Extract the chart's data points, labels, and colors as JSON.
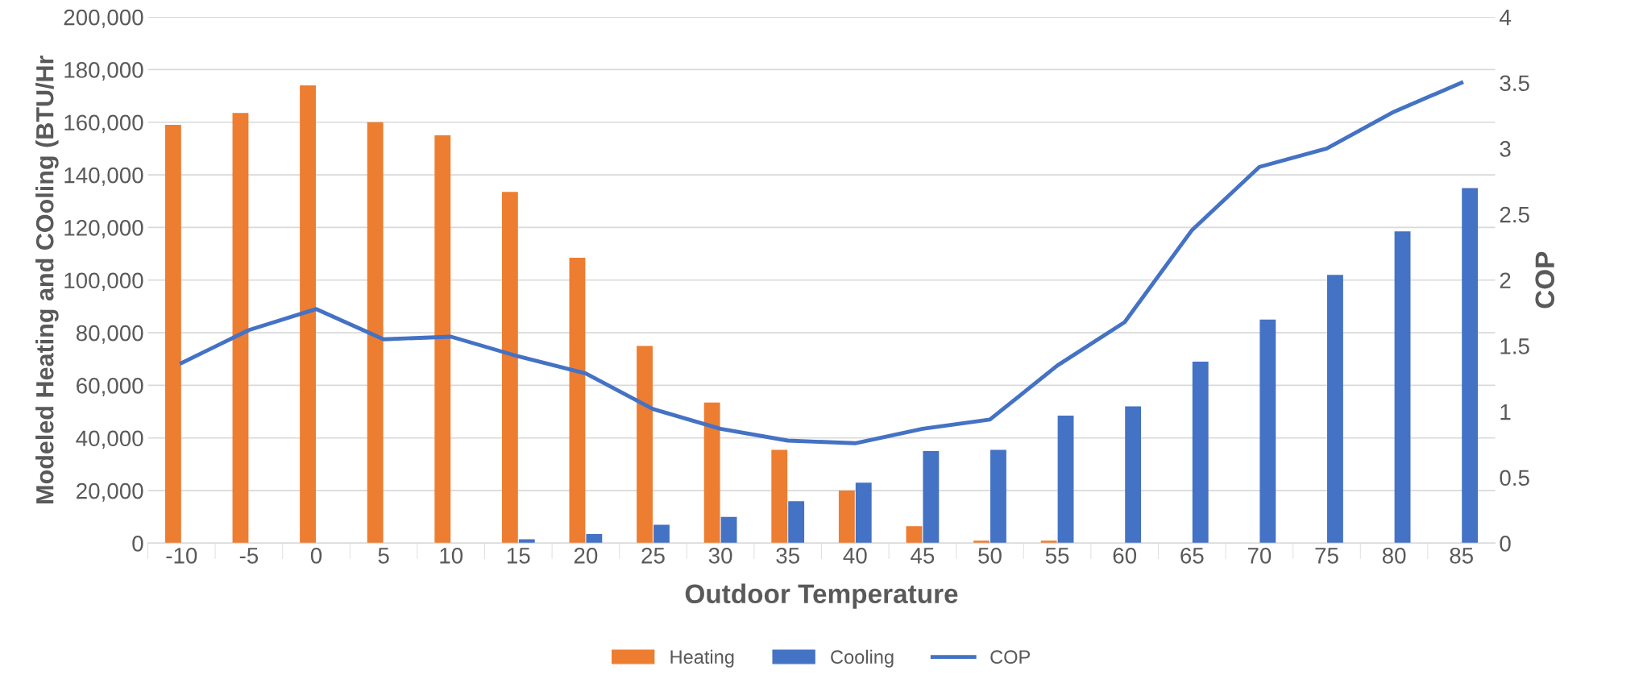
{
  "chart_data": {
    "type": "bar",
    "xlabel": "Outdoor Temperature",
    "ylabel": "Modeled Heating and COoling (BTU/Hr",
    "y2label": "COP",
    "categories": [
      "-10",
      "-5",
      "0",
      "5",
      "10",
      "15",
      "20",
      "25",
      "30",
      "35",
      "40",
      "45",
      "50",
      "55",
      "60",
      "65",
      "70",
      "75",
      "80",
      "85"
    ],
    "series": [
      {
        "name": "Heating",
        "color": "#ed7d31",
        "values": [
          159000,
          163500,
          174000,
          160000,
          155000,
          133500,
          108500,
          75000,
          53500,
          35500,
          20000,
          6500,
          1000,
          1000,
          null,
          null,
          null,
          null,
          null,
          null
        ]
      },
      {
        "name": "Cooling",
        "color": "#4472c4",
        "values": [
          null,
          null,
          null,
          null,
          null,
          1500,
          3500,
          7000,
          10000,
          16000,
          23000,
          35000,
          35500,
          48500,
          52000,
          69000,
          85000,
          102000,
          118500,
          135000
        ]
      },
      {
        "name": "COP",
        "type": "line",
        "axis": "y2",
        "color": "#4472c4",
        "values": [
          1.37,
          1.62,
          1.78,
          1.55,
          1.57,
          1.42,
          1.29,
          1.02,
          0.87,
          0.78,
          0.76,
          0.87,
          0.94,
          1.35,
          1.68,
          2.38,
          2.86,
          3.0,
          3.28,
          3.5
        ]
      }
    ],
    "ylim": [
      0,
      200000
    ],
    "yticks": [
      0,
      {
        "value": 20000,
        "label": "20,000"
      },
      {
        "value": 40000,
        "label": "40,000"
      },
      {
        "value": 60000,
        "label": "60,000"
      },
      {
        "value": 80000,
        "label": "80,000"
      },
      {
        "value": 100000,
        "label": "100,000"
      },
      {
        "value": 120000,
        "label": "120,000"
      },
      {
        "value": 140000,
        "label": "140,000"
      },
      {
        "value": 160000,
        "label": "160,000"
      },
      {
        "value": 180000,
        "label": "180,000"
      },
      {
        "value": 200000,
        "label": "200,000"
      }
    ],
    "y2lim": [
      0,
      4
    ],
    "y2ticks": [
      0,
      0.5,
      1,
      1.5,
      2,
      2.5,
      3,
      3.5,
      4
    ],
    "grid": "y",
    "legend": "bottom",
    "marker": "none",
    "line_style": "solid"
  }
}
